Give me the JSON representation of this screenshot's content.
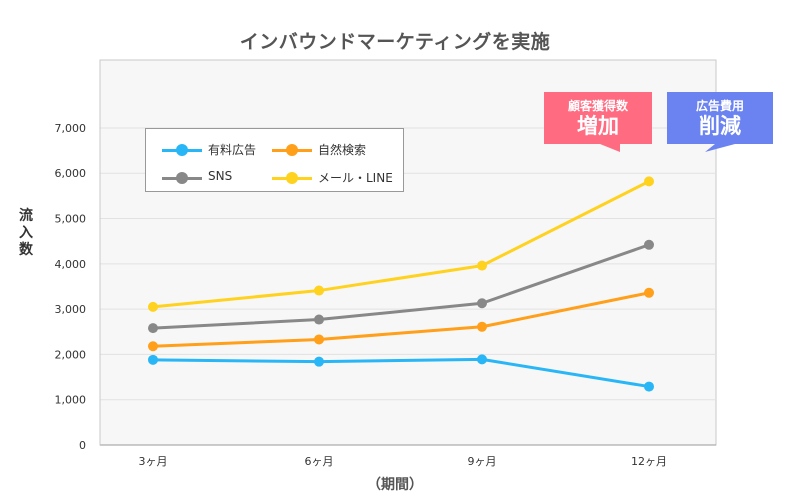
{
  "chart_data": {
    "type": "line",
    "title": "インバウンドマーケティングを実施",
    "xlabel": "（期間）",
    "ylabel": "流入数",
    "categories": [
      "3ヶ月",
      "6ヶ月",
      "9ヶ月",
      "12ヶ月"
    ],
    "ylim": [
      0,
      8500
    ],
    "yticks": [
      0,
      1000,
      2000,
      3000,
      4000,
      5000,
      6000,
      7000
    ],
    "ytick_labels": [
      "0",
      "1,000",
      "2,000",
      "3,000",
      "4,000",
      "5,000",
      "6,000",
      "7,000"
    ],
    "grid": true,
    "legend_position": "top-left",
    "series": [
      {
        "name": "有料広告",
        "color": "#29b6f6",
        "values": [
          1880,
          1840,
          1890,
          1290
        ]
      },
      {
        "name": "自然検索",
        "color": "#ff9f1a",
        "values": [
          2180,
          2330,
          2610,
          3360
        ]
      },
      {
        "name": "SNS",
        "color": "#888888",
        "values": [
          2580,
          2770,
          3130,
          4420
        ]
      },
      {
        "name": "メール・LINE",
        "color": "#ffd21f",
        "values": [
          3050,
          3410,
          3960,
          5820
        ]
      }
    ],
    "annotations": [
      {
        "line1": "顧客獲得数",
        "line2": "増加",
        "color": "#ff6b81"
      },
      {
        "line1": "広告費用",
        "line2": "削減",
        "color": "#6b83f0"
      }
    ]
  }
}
